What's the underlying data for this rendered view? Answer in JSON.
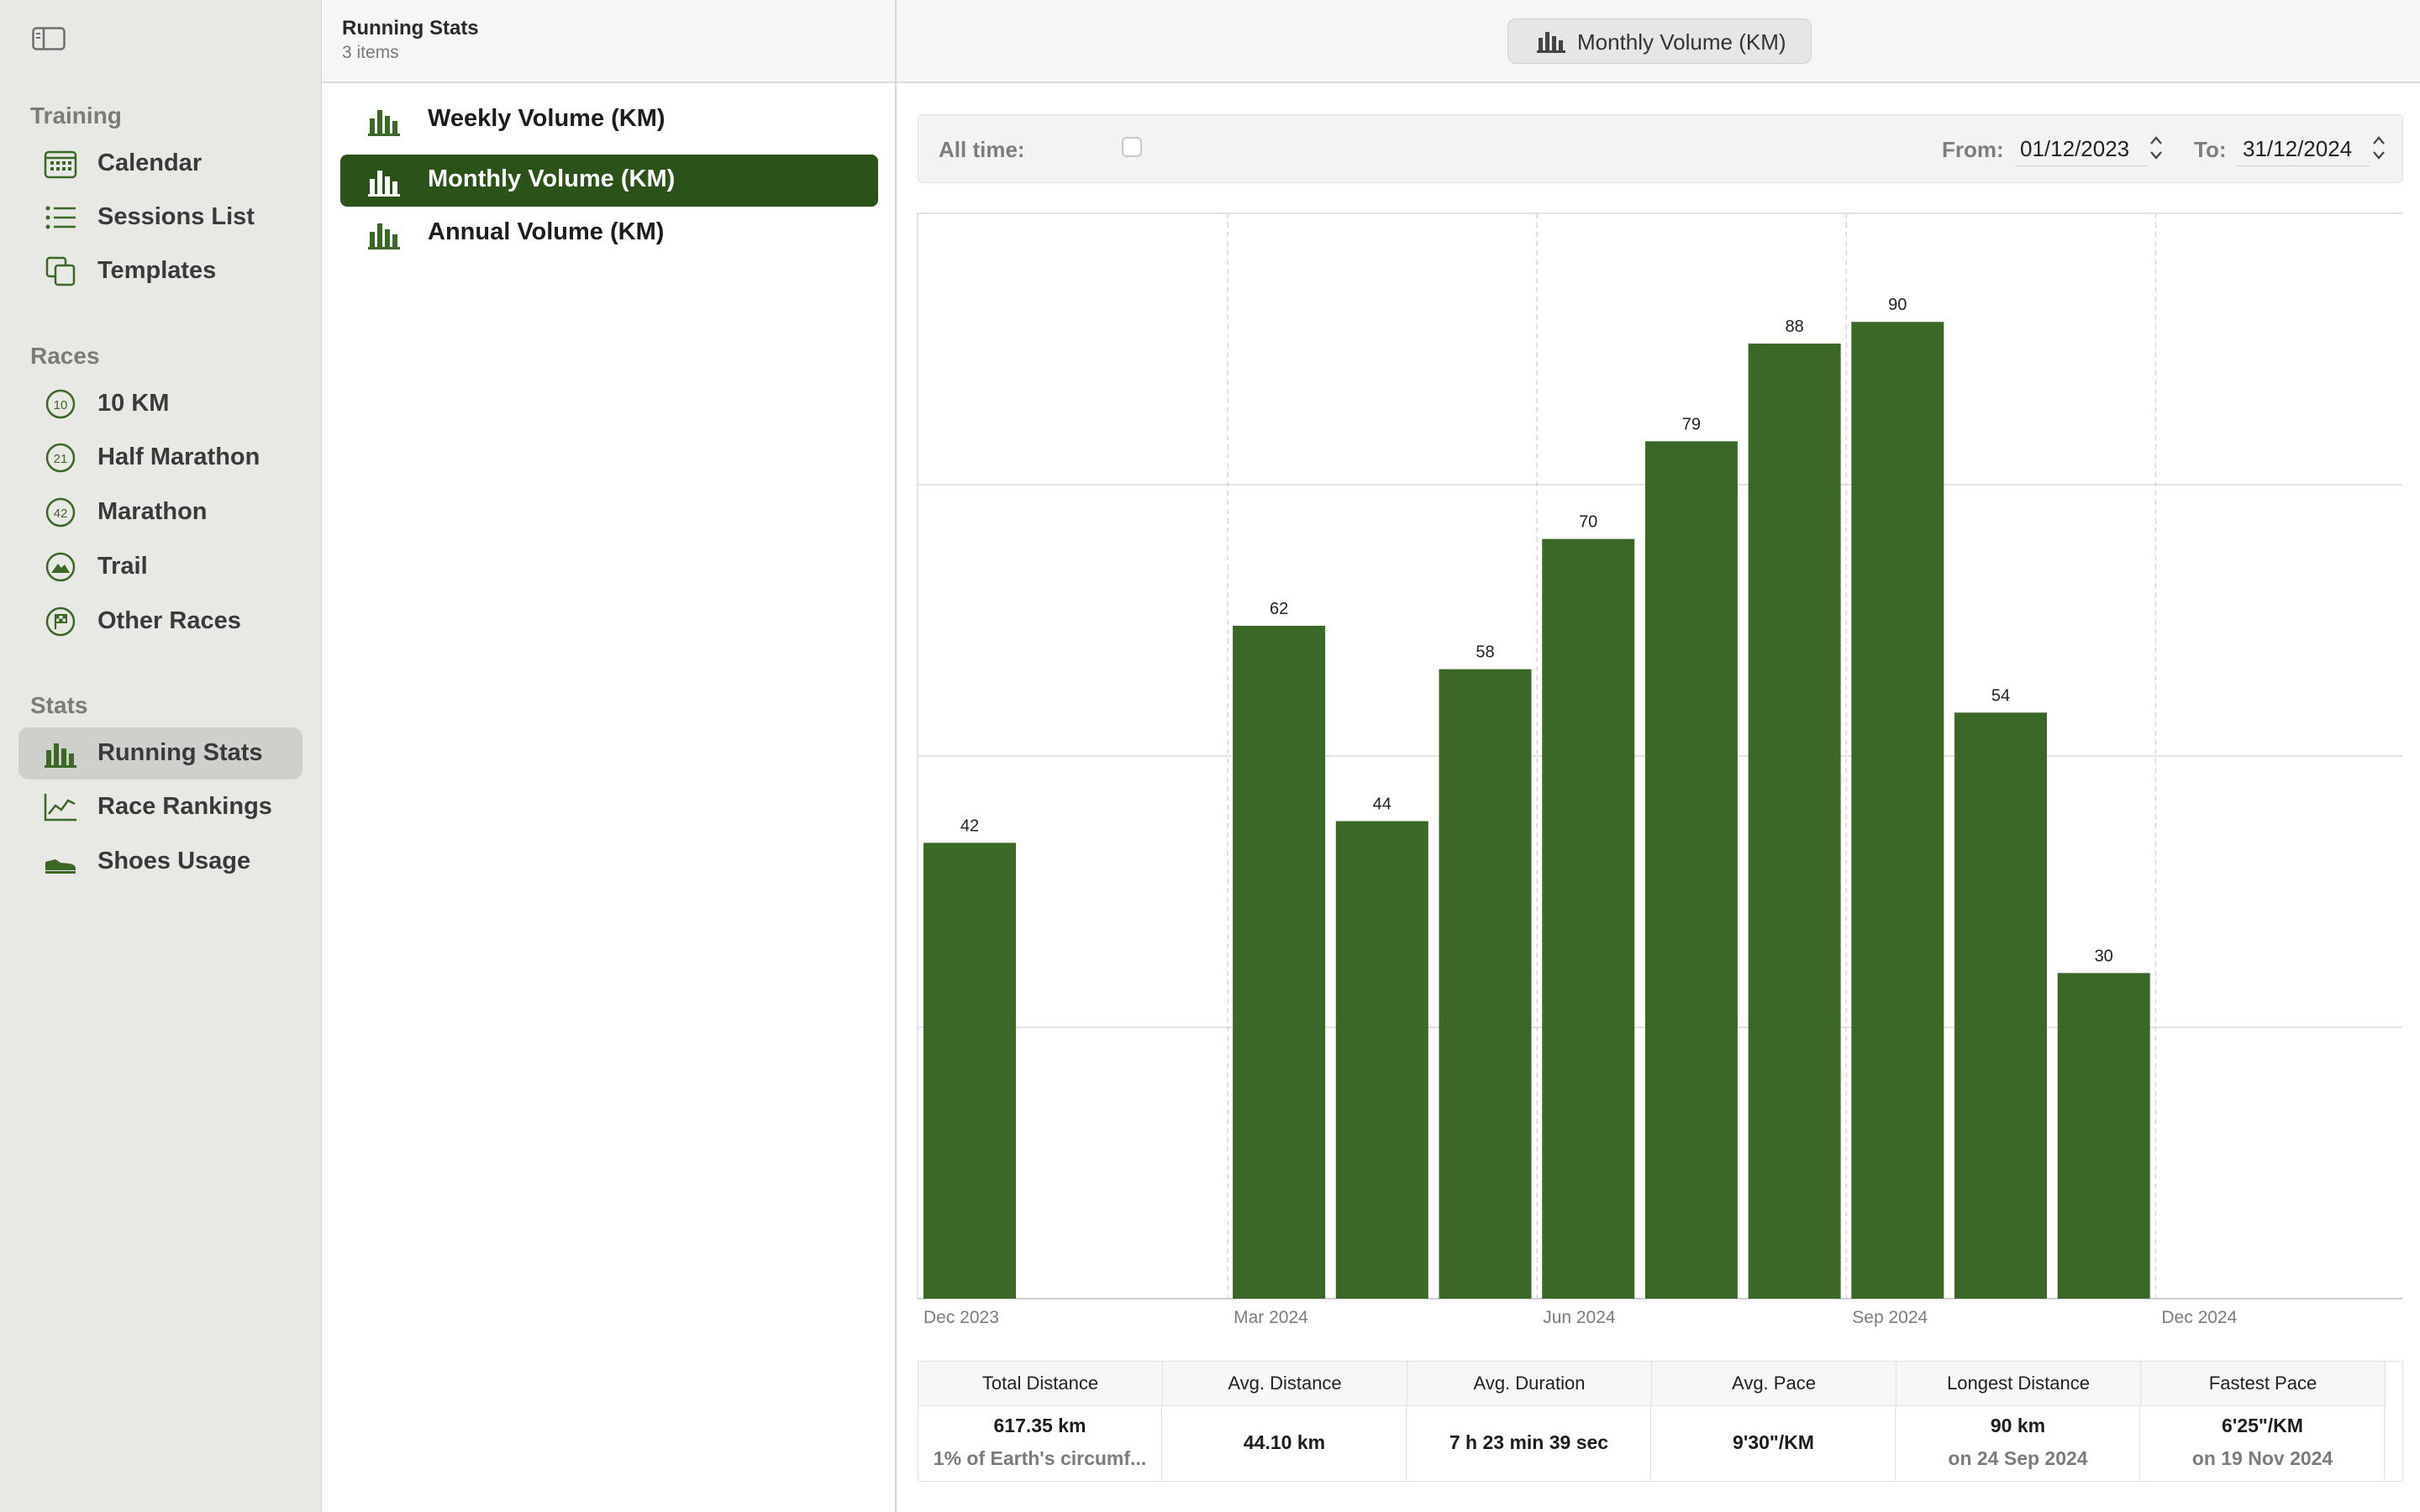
{
  "sidebar": {
    "sections": [
      {
        "title": "Training",
        "items": [
          {
            "label": "Calendar",
            "icon": "calendar-icon"
          },
          {
            "label": "Sessions List",
            "icon": "list-icon"
          },
          {
            "label": "Templates",
            "icon": "templates-icon"
          }
        ]
      },
      {
        "title": "Races",
        "items": [
          {
            "label": "10 KM",
            "icon": "badge-10-icon",
            "badge": "10"
          },
          {
            "label": "Half Marathon",
            "icon": "badge-21-icon",
            "badge": "21"
          },
          {
            "label": "Marathon",
            "icon": "badge-42-icon",
            "badge": "42"
          },
          {
            "label": "Trail",
            "icon": "mountain-icon"
          },
          {
            "label": "Other Races",
            "icon": "flag-icon"
          }
        ]
      },
      {
        "title": "Stats",
        "items": [
          {
            "label": "Running Stats",
            "icon": "bar-chart-icon",
            "selected": true
          },
          {
            "label": "Race Rankings",
            "icon": "line-chart-icon"
          },
          {
            "label": "Shoes Usage",
            "icon": "shoe-icon"
          }
        ]
      }
    ]
  },
  "list": {
    "title": "Running Stats",
    "count": "3 items",
    "items": [
      {
        "label": "Weekly Volume (KM)"
      },
      {
        "label": "Monthly Volume (KM)",
        "selected": true
      },
      {
        "label": "Annual Volume (KM)"
      }
    ]
  },
  "toolbar": {
    "title": "Monthly Volume (KM)"
  },
  "filters": {
    "all_time_label": "All time:",
    "all_time_checked": false,
    "from_label": "From:",
    "from_value": "01/12/2023",
    "to_label": "To:",
    "to_value": "31/12/2024"
  },
  "chart_data": {
    "type": "bar",
    "title": "",
    "xlabel": "",
    "ylabel": "",
    "categories": [
      "Dec 2023",
      "Jan 2024",
      "Feb 2024",
      "Mar 2024",
      "Apr 2024",
      "May 2024",
      "Jun 2024",
      "Jul 2024",
      "Aug 2024",
      "Sep 2024",
      "Oct 2024",
      "Nov 2024",
      "Dec 2024"
    ],
    "values": [
      42,
      0,
      0,
      62,
      44,
      58,
      70,
      79,
      88,
      90,
      54,
      30,
      0
    ],
    "data_labels": [
      "42",
      "",
      "",
      "62",
      "44",
      "58",
      "70",
      "79",
      "88",
      "90",
      "54",
      "30",
      ""
    ],
    "x_ticks": [
      "Dec 2023",
      "Mar 2024",
      "Jun 2024",
      "Sep 2024",
      "Dec 2024"
    ],
    "y_ticks": [
      0,
      25,
      50,
      75,
      100
    ],
    "ylim": [
      0,
      100
    ],
    "y_axis_side": "right",
    "grid": true,
    "bar_color": "#3b6827"
  },
  "stats": {
    "headers": [
      "Total Distance",
      "Avg. Distance",
      "Avg. Duration",
      "Avg. Pace",
      "Longest Distance",
      "Fastest Pace"
    ],
    "cells": [
      {
        "main": "617.35 km",
        "sub": "1% of Earth's circumf..."
      },
      {
        "main": "44.10 km",
        "sub": ""
      },
      {
        "main": "7 h 23 min 39 sec",
        "sub": ""
      },
      {
        "main": "9'30\"/KM",
        "sub": ""
      },
      {
        "main": "90 km",
        "sub": "on 24 Sep 2024"
      },
      {
        "main": "6'25\"/KM",
        "sub": "on 19 Nov 2024"
      }
    ]
  },
  "colors": {
    "accent": "#2b5218",
    "icon_green": "#3b6827"
  }
}
